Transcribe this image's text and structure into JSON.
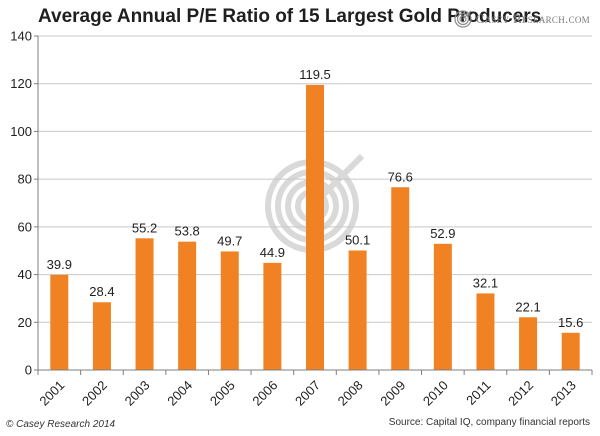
{
  "logo": {
    "text": "Casey Research.com",
    "icon": "spiral-logo-icon"
  },
  "footer": {
    "copyright": "© Casey Research 2014",
    "source": "Source: Capital IQ, company financial reports"
  },
  "colors": {
    "bar": "#f08223",
    "grid": "#c8c8c8",
    "axis": "#7f7f7f",
    "logo": "#8c8c8c",
    "watermark": "#d9d9d9"
  },
  "chart_data": {
    "type": "bar",
    "title": "Average Annual P/E Ratio of 15 Largest Gold Producers",
    "xlabel": "",
    "ylabel": "",
    "categories": [
      "2001",
      "2002",
      "2003",
      "2004",
      "2005",
      "2006",
      "2007",
      "2008",
      "2009",
      "2010",
      "2011",
      "2012",
      "2013"
    ],
    "values": [
      39.9,
      28.4,
      55.2,
      53.8,
      49.7,
      44.9,
      119.5,
      50.1,
      76.6,
      52.9,
      32.1,
      22.1,
      15.6
    ],
    "data_labels": [
      "39.9",
      "28.4",
      "55.2",
      "53.8",
      "49.7",
      "44.9",
      "119.5",
      "50.1",
      "76.6",
      "52.9",
      "32.1",
      "22.1",
      "15.6"
    ],
    "ylim": [
      0,
      140
    ],
    "yticks": [
      "0",
      "20",
      "40",
      "60",
      "80",
      "100",
      "120",
      "140"
    ],
    "grid": true,
    "legend": "none"
  }
}
